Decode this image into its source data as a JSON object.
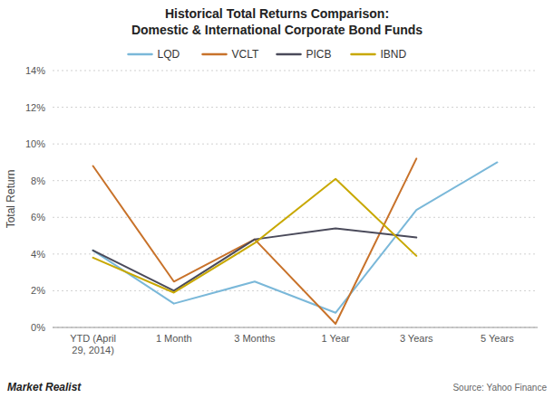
{
  "chart_data": {
    "type": "line",
    "title": "Historical Total Returns Comparison:",
    "subtitle": "Domestic & International Corporate Bond Funds",
    "y_label": "Total Return",
    "categories": [
      "YTD (April\n29, 2014)",
      "1 Month",
      "3 Months",
      "1 Year",
      "3 Years",
      "5 Years"
    ],
    "series": [
      {
        "name": "LQD",
        "color": "#7ab8d9",
        "values": [
          4.2,
          1.3,
          2.5,
          0.8,
          6.4,
          9.0
        ]
      },
      {
        "name": "VCLT",
        "color": "#c8722a",
        "values": [
          8.8,
          2.5,
          4.8,
          0.2,
          9.2,
          null
        ]
      },
      {
        "name": "PICB",
        "color": "#4a4a5a",
        "values": [
          4.2,
          2.0,
          4.8,
          5.4,
          4.9,
          null
        ]
      },
      {
        "name": "IBND",
        "color": "#c8a800",
        "values": [
          3.8,
          1.9,
          4.6,
          8.1,
          3.9,
          null
        ]
      }
    ],
    "ylim": [
      0,
      14
    ],
    "yticks": [
      {
        "value": 0,
        "label": "0%"
      },
      {
        "value": 2,
        "label": "2%"
      },
      {
        "value": 4,
        "label": "4%"
      },
      {
        "value": 6,
        "label": "6%"
      },
      {
        "value": 8,
        "label": "8%"
      },
      {
        "value": 10,
        "label": "10%"
      },
      {
        "value": 12,
        "label": "12%"
      },
      {
        "value": 14,
        "label": "14%"
      }
    ],
    "grid": true,
    "legend": "top",
    "annotations": [
      "Market Realist",
      "Source: Yahoo Finance"
    ]
  }
}
